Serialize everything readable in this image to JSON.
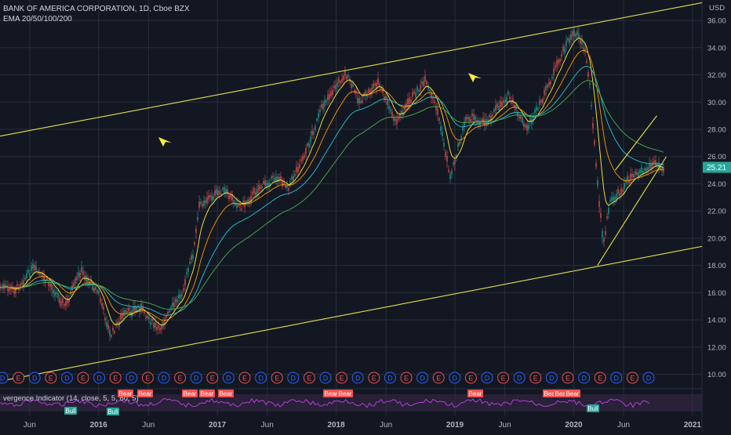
{
  "header": {
    "title": "BANK OF AMERICA CORPORATION, 1D, Cboe BZX",
    "indicator": "EMA 20/50/100/200",
    "currency": "USD"
  },
  "price_label": {
    "value": "25.21",
    "color": "#26a69a"
  },
  "oscillator": {
    "label": "vergence Indicator (14, close, 5, 5, 60, 5)"
  },
  "colors": {
    "background": "#131722",
    "grid": "#2a2e39",
    "trendline": "#e3e24b",
    "arrow": "#ffeb3b",
    "oscillator": "#b53fd6",
    "bear_tag": "#ef5350",
    "bull_tag": "#26a69a",
    "earnings": "#2962ff",
    "dividend": "#ef5350"
  },
  "chart_data": {
    "type": "line",
    "title": "BANK OF AMERICA CORPORATION, 1D, Cboe BZX",
    "ylim": [
      9,
      37.5
    ],
    "y_ticks": [
      "10.00",
      "12.00",
      "14.00",
      "16.00",
      "18.00",
      "20.00",
      "22.00",
      "24.00",
      "26.00",
      "28.00",
      "30.00",
      "32.00",
      "34.00",
      "36.00"
    ],
    "x_ticks": [
      "Jun",
      "2016",
      "Jun",
      "2017",
      "Jun",
      "2018",
      "Jun",
      "2019",
      "Jun",
      "2020",
      "Jun",
      "2021"
    ],
    "x_tick_dates": [
      "2015.42",
      "2016.00",
      "2016.42",
      "2017.00",
      "2017.42",
      "2018.00",
      "2018.42",
      "2019.00",
      "2019.42",
      "2020.00",
      "2020.42",
      "2021.00"
    ],
    "xlim": [
      "2015.17",
      "2021.08"
    ],
    "series": [
      {
        "x": [
          "2015.17",
          "2015.30",
          "2015.45",
          "2015.60",
          "2015.72",
          "2015.85",
          "2016.00",
          "2016.10",
          "2016.20",
          "2016.35",
          "2016.50",
          "2016.70",
          "2016.80",
          "2016.85",
          "2016.92",
          "2017.05",
          "2017.20",
          "2017.35",
          "2017.50",
          "2017.60",
          "2017.75",
          "2017.90",
          "2018.00",
          "2018.08",
          "2018.20",
          "2018.35",
          "2018.50",
          "2018.65",
          "2018.75",
          "2018.85",
          "2018.96",
          "2019.10",
          "2019.25",
          "2019.35",
          "2019.45",
          "2019.60",
          "2019.70",
          "2019.85",
          "2019.95",
          "2020.03",
          "2020.10",
          "2020.14",
          "2020.20",
          "2020.25",
          "2020.30",
          "2020.40",
          "2020.50",
          "2020.60",
          "2020.68",
          "2020.76"
        ],
        "values": [
          16.4,
          16.2,
          17.8,
          16.5,
          15.0,
          17.6,
          16.0,
          12.8,
          14.3,
          15.0,
          13.2,
          16.0,
          19.0,
          22.5,
          22.9,
          23.5,
          22.3,
          23.7,
          24.5,
          23.8,
          26.5,
          30.0,
          31.2,
          32.1,
          30.0,
          31.5,
          28.5,
          30.5,
          31.5,
          29.5,
          24.5,
          29.0,
          28.5,
          29.5,
          30.5,
          28.0,
          29.5,
          32.5,
          34.5,
          35.2,
          33.6,
          31.0,
          24.0,
          19.5,
          22.5,
          23.5,
          24.8,
          25.0,
          25.5,
          25.2
        ]
      }
    ],
    "trendlines": [
      {
        "name": "upper channel",
        "x": [
          "2015.17",
          "2021.08"
        ],
        "y": [
          27.5,
          37.3
        ]
      },
      {
        "name": "lower channel",
        "x": [
          "2015.17",
          "2021.08"
        ],
        "y": [
          9.5,
          19.4
        ]
      },
      {
        "name": "rising support",
        "x": [
          "2020.20",
          "2020.78"
        ],
        "y": [
          18.0,
          26.0
        ]
      },
      {
        "name": "rising resistance",
        "x": [
          "2020.35",
          "2020.70"
        ],
        "y": [
          25.0,
          29.0
        ]
      }
    ],
    "grid": true,
    "last_value": 25.21
  }
}
